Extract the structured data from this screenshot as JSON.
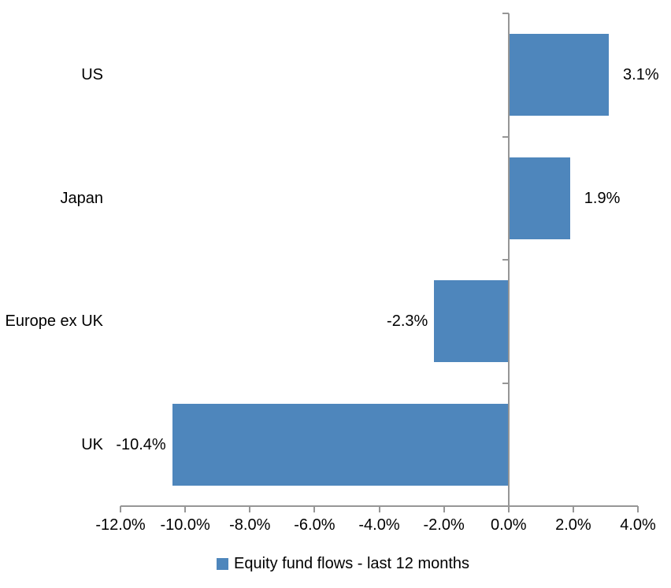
{
  "chart_data": {
    "type": "bar",
    "orientation": "horizontal",
    "title": "",
    "categories": [
      "US",
      "Japan",
      "Europe ex UK",
      "UK"
    ],
    "series": [
      {
        "name": "Equity fund flows - last 12 months",
        "values": [
          3.1,
          1.9,
          -2.3,
          -10.4
        ],
        "value_labels": [
          "3.1%",
          "1.9%",
          "-2.3%",
          "-10.4%"
        ]
      }
    ],
    "xlabel": "",
    "ylabel": "",
    "xlim": [
      -12,
      4
    ],
    "x_tick_values": [
      -12,
      -10,
      -8,
      -6,
      -4,
      -2,
      0,
      2,
      4
    ],
    "x_tick_labels": [
      "-12.0%",
      "-10.0%",
      "-8.0%",
      "-6.0%",
      "-4.0%",
      "-2.0%",
      "0.0%",
      "2.0%",
      "4.0%"
    ],
    "grid": false,
    "legend": {
      "position": "bottom",
      "entries": [
        {
          "label": "Equity fund flows - last 12 months",
          "color": "#4E86BC"
        }
      ]
    },
    "colors": {
      "bar": "#4E86BC",
      "axis": "#969696",
      "text": "#000000",
      "background": "#FFFFFF"
    }
  }
}
